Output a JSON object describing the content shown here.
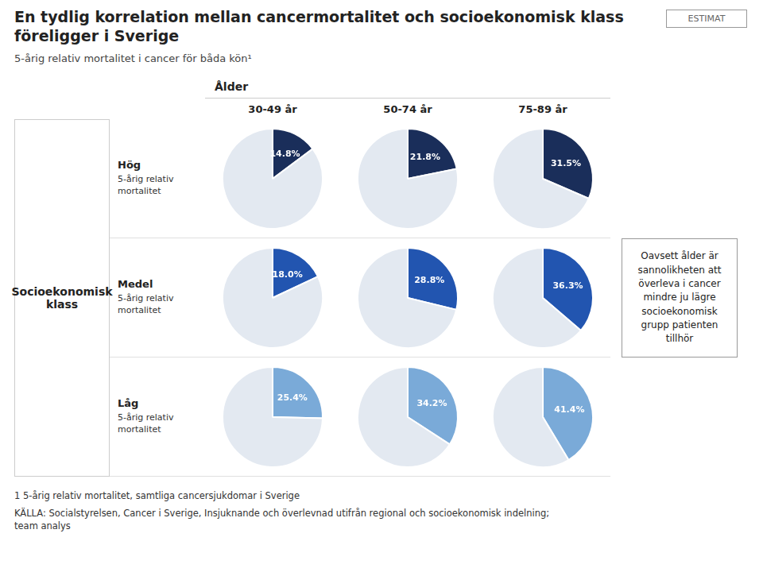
{
  "chart_data": {
    "type": "pie",
    "title": "En tydlig korrelation mellan cancermortalitet och socioekonomisk klass\nföreligger i Sverige",
    "subtitle": "5-årig relativ mortalitet i cancer för båda kön¹",
    "annotations": [
      "ESTIMAT",
      "Oavsett ålder är\nsannolikheten att\növerleva i cancer\nmindre ju lägre\nsocioekonomisk\ngrupp patienten\ntillhör"
    ],
    "footnotes": [
      "1  5-årig relativ mortalitet, samtliga cancersjukdomar i Sverige",
      "KÄLLA: Socialstyrelsen, Cancer i Sverige, Insjuknande och överlevnad utifrån regional och socioekonomisk indelning;\nteam analys"
    ],
    "x_label": "Ålder",
    "y_label": "Socioekonomisk\nklass",
    "categories": [
      "30-49 år",
      "50-74 år",
      "75-89 år"
    ],
    "data_labels": true,
    "legend": false,
    "rows": [
      {
        "name": "Hög",
        "sublabel": "5-årig relativ\nmortalitet",
        "pies": [
          {
            "values": [
              14.8,
              85.2
            ],
            "value_labels": [
              "14.8%",
              null
            ],
            "colors": [
              "#1a2e5a",
              "#e3e9f1"
            ]
          },
          {
            "values": [
              21.8,
              78.2
            ],
            "value_labels": [
              "21.8%",
              null
            ],
            "colors": [
              "#1a2e5a",
              "#e3e9f1"
            ]
          },
          {
            "values": [
              31.5,
              68.5
            ],
            "value_labels": [
              "31.5%",
              null
            ],
            "colors": [
              "#1a2e5a",
              "#e3e9f1"
            ]
          }
        ]
      },
      {
        "name": "Medel",
        "sublabel": "5-årig relativ\nmortalitet",
        "pies": [
          {
            "values": [
              18.0,
              82.0
            ],
            "value_labels": [
              "18.0%",
              null
            ],
            "colors": [
              "#2255b0",
              "#e3e9f1"
            ]
          },
          {
            "values": [
              28.8,
              71.2
            ],
            "value_labels": [
              "28.8%",
              null
            ],
            "colors": [
              "#2255b0",
              "#e3e9f1"
            ]
          },
          {
            "values": [
              36.3,
              63.7
            ],
            "value_labels": [
              "36.3%",
              null
            ],
            "colors": [
              "#2255b0",
              "#e3e9f1"
            ]
          }
        ]
      },
      {
        "name": "Låg",
        "sublabel": "5-årig relativ\nmortalitet",
        "pies": [
          {
            "values": [
              25.4,
              74.6
            ],
            "value_labels": [
              "25.4%",
              null
            ],
            "colors": [
              "#7aaad8",
              "#e3e9f1"
            ]
          },
          {
            "values": [
              34.2,
              65.8
            ],
            "value_labels": [
              "34.2%",
              null
            ],
            "colors": [
              "#7aaad8",
              "#e3e9f1"
            ]
          },
          {
            "values": [
              41.4,
              58.6
            ],
            "value_labels": [
              "41.4%",
              null
            ],
            "colors": [
              "#7aaad8",
              "#e3e9f1"
            ]
          }
        ]
      }
    ]
  }
}
